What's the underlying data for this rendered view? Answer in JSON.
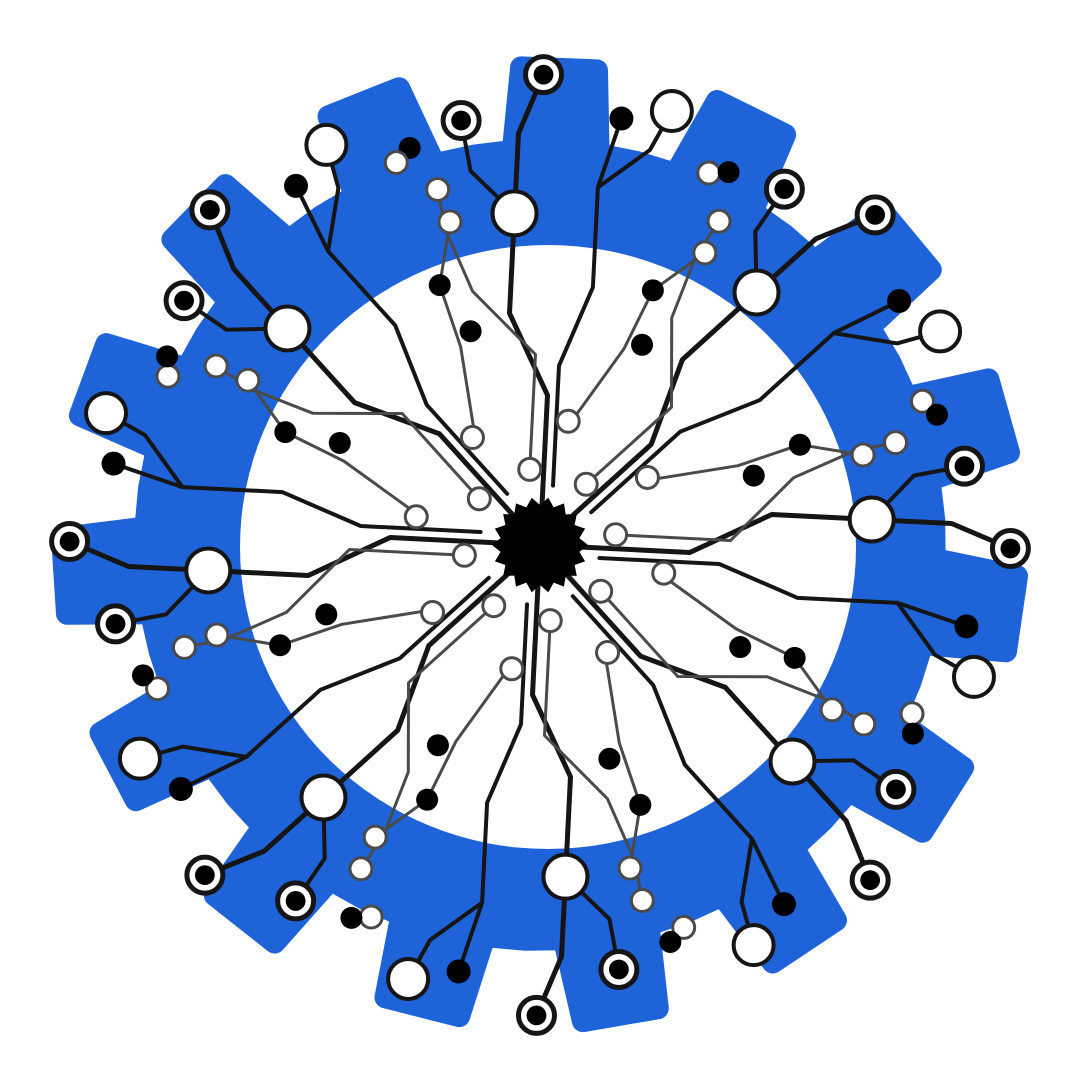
{
  "image": {
    "subject": "gear-circuit-emblem",
    "colors": {
      "background": "#ffffff",
      "gear_fill": "#1f63d8",
      "inner_disc": "#ffffff",
      "trace": "#151515",
      "trace_light": "#4a4a4a",
      "node_fill_dark": "#000000",
      "node_fill_light": "#ffffff",
      "hub": "#000000"
    },
    "icons": [
      "gear-icon",
      "circuit-trace-icon",
      "circuit-node-icon",
      "hub-icon"
    ]
  }
}
